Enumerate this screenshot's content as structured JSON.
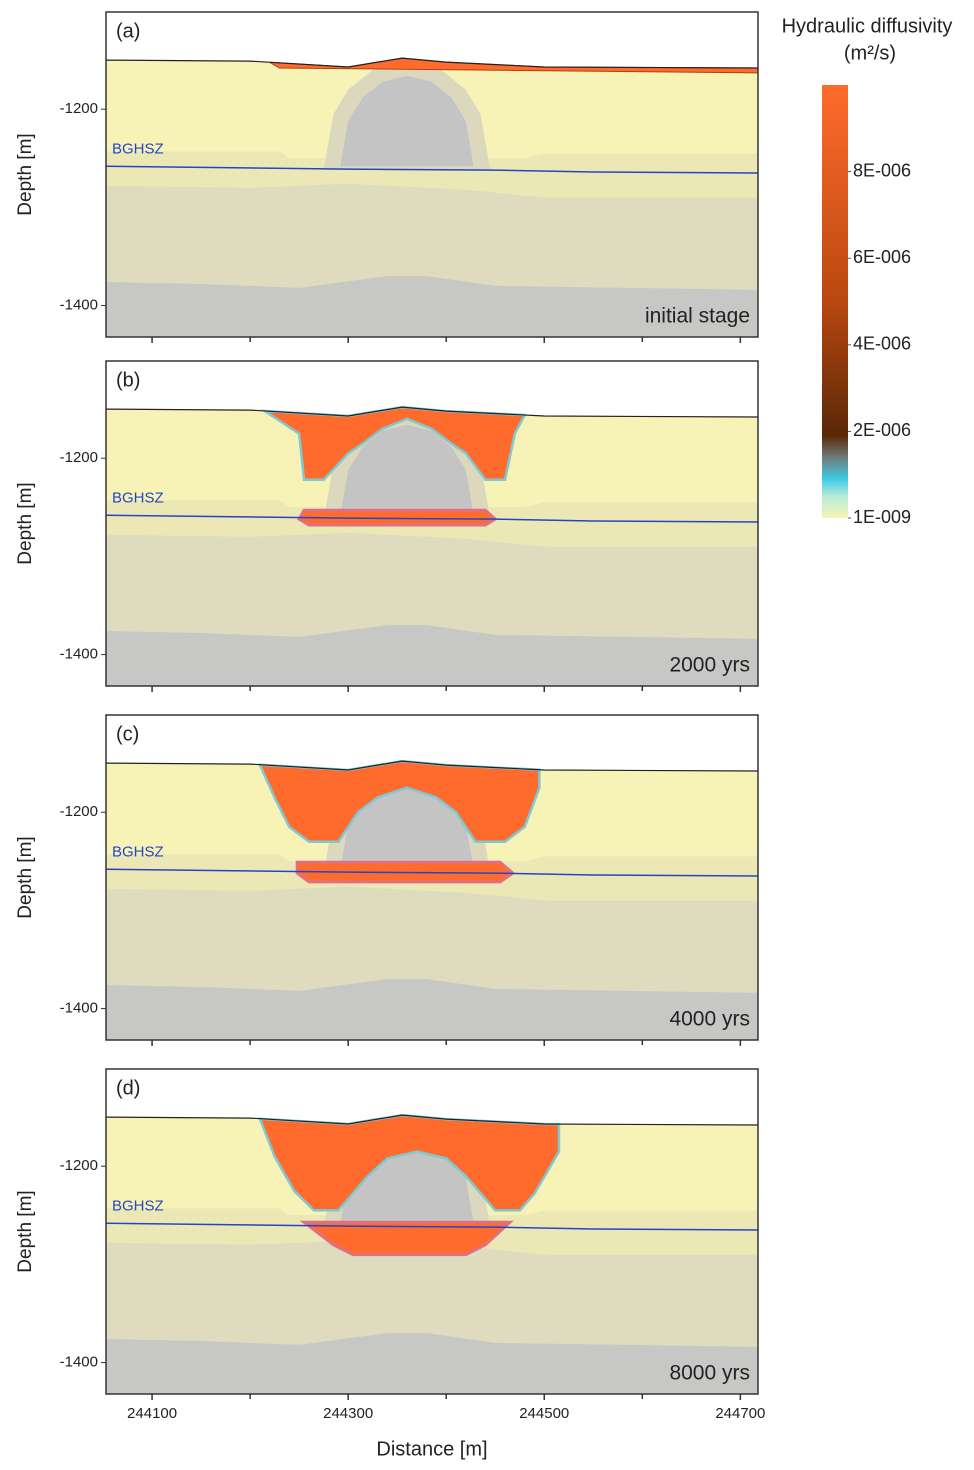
{
  "chart_data": {
    "type": "contour-panels",
    "xlabel": "Distance [m]",
    "xlim": [
      244053,
      244718
    ],
    "xticks": [
      244100,
      244300,
      244500,
      244700
    ],
    "xticks_minor": [
      244200,
      244400,
      244600
    ],
    "ylabel": "Depth [m]",
    "ylim": [
      -1432,
      -1101
    ],
    "yticks": [
      -1200,
      -1400
    ],
    "annotation": "BGHSZ",
    "panels": [
      {
        "label": "(a)",
        "stage": "initial stage"
      },
      {
        "label": "(b)",
        "stage": "2000 yrs"
      },
      {
        "label": "(c)",
        "stage": "4000 yrs"
      },
      {
        "label": "(d)",
        "stage": "8000 yrs"
      }
    ],
    "colorbar": {
      "title": "Hydraulic diffusivity",
      "unit": "(m²/s)",
      "lim": [
        1e-09,
        1e-05
      ],
      "ticks": [
        {
          "value": 8e-06,
          "label": "8E-006"
        },
        {
          "value": 6e-06,
          "label": "6E-006"
        },
        {
          "value": 4e-06,
          "label": "4E-006"
        },
        {
          "value": 2e-06,
          "label": "2E-006"
        },
        {
          "value": 1e-09,
          "label": "1E-009"
        }
      ]
    }
  }
}
